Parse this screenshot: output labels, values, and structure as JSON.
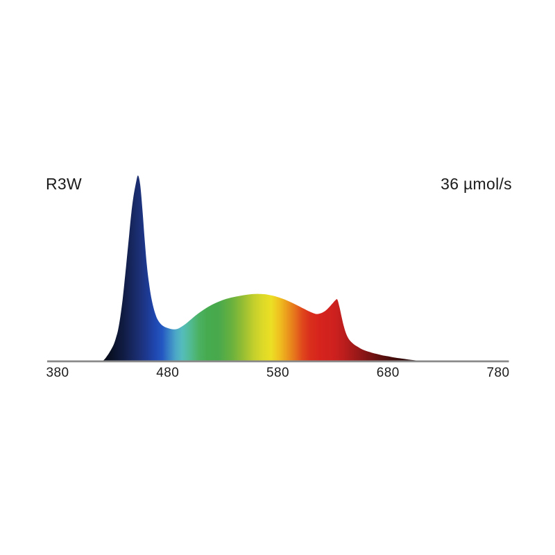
{
  "page": {
    "background_color": "#ffffff",
    "text_color": "#1b1b1b"
  },
  "chart_data": {
    "type": "area",
    "title": "",
    "annotations": {
      "series_name": "R3W",
      "photon_flux": "36 µmol/s"
    },
    "x_axis": {
      "min": 380,
      "max": 780,
      "unit": "nm",
      "ticks": [
        380,
        480,
        580,
        680,
        780
      ],
      "line_color": "#8a8a8a",
      "grid": false
    },
    "y_axis": {
      "min": 0,
      "max": 1,
      "visible": false
    },
    "series": [
      {
        "name": "R3W",
        "points": [
          [
            421,
            0
          ],
          [
            423,
            0.012
          ],
          [
            425,
            0.028
          ],
          [
            427,
            0.046
          ],
          [
            429,
            0.066
          ],
          [
            431,
            0.09
          ],
          [
            433,
            0.125
          ],
          [
            435,
            0.17
          ],
          [
            437,
            0.24
          ],
          [
            439,
            0.33
          ],
          [
            441,
            0.44
          ],
          [
            443,
            0.56
          ],
          [
            445,
            0.68
          ],
          [
            447,
            0.8
          ],
          [
            449,
            0.89
          ],
          [
            451,
            0.955
          ],
          [
            453,
            1.0
          ],
          [
            455,
            0.95
          ],
          [
            457,
            0.82
          ],
          [
            459,
            0.66
          ],
          [
            461,
            0.52
          ],
          [
            463,
            0.42
          ],
          [
            465,
            0.345
          ],
          [
            467,
            0.29
          ],
          [
            469,
            0.25
          ],
          [
            471,
            0.222
          ],
          [
            474,
            0.198
          ],
          [
            477,
            0.185
          ],
          [
            480,
            0.178
          ],
          [
            483,
            0.173
          ],
          [
            486,
            0.171
          ],
          [
            489,
            0.174
          ],
          [
            492,
            0.183
          ],
          [
            496,
            0.199
          ],
          [
            500,
            0.219
          ],
          [
            505,
            0.244
          ],
          [
            510,
            0.266
          ],
          [
            515,
            0.286
          ],
          [
            521,
            0.306
          ],
          [
            527,
            0.322
          ],
          [
            533,
            0.335
          ],
          [
            539,
            0.344
          ],
          [
            545,
            0.351
          ],
          [
            551,
            0.357
          ],
          [
            557,
            0.361
          ],
          [
            563,
            0.362
          ],
          [
            569,
            0.36
          ],
          [
            574,
            0.354
          ],
          [
            579,
            0.347
          ],
          [
            584,
            0.337
          ],
          [
            589,
            0.325
          ],
          [
            594,
            0.311
          ],
          [
            599,
            0.296
          ],
          [
            604,
            0.281
          ],
          [
            608,
            0.269
          ],
          [
            612,
            0.259
          ],
          [
            615,
            0.254
          ],
          [
            618,
            0.256
          ],
          [
            621,
            0.263
          ],
          [
            624,
            0.275
          ],
          [
            627,
            0.293
          ],
          [
            630,
            0.313
          ],
          [
            632,
            0.326
          ],
          [
            634,
            0.332
          ],
          [
            636,
            0.29
          ],
          [
            638,
            0.235
          ],
          [
            640,
            0.185
          ],
          [
            642,
            0.148
          ],
          [
            644,
            0.123
          ],
          [
            646,
            0.107
          ],
          [
            649,
            0.091
          ],
          [
            652,
            0.079
          ],
          [
            656,
            0.065
          ],
          [
            660,
            0.055
          ],
          [
            665,
            0.046
          ],
          [
            670,
            0.038
          ],
          [
            675,
            0.031
          ],
          [
            680,
            0.026
          ],
          [
            686,
            0.019
          ],
          [
            692,
            0.014
          ],
          [
            698,
            0.009
          ],
          [
            704,
            0.005
          ],
          [
            710,
            0.002
          ],
          [
            716,
            0.001
          ],
          [
            720,
            0
          ]
        ]
      }
    ],
    "wavelength_gradient": [
      [
        380,
        "#000000"
      ],
      [
        418,
        "#03050c"
      ],
      [
        430,
        "#0a1228"
      ],
      [
        440,
        "#111c44"
      ],
      [
        448,
        "#172760"
      ],
      [
        454,
        "#1b2f74"
      ],
      [
        461,
        "#1d3990"
      ],
      [
        468,
        "#1f46ae"
      ],
      [
        475,
        "#2457c2"
      ],
      [
        481,
        "#3780c6"
      ],
      [
        487,
        "#4ba6c8"
      ],
      [
        493,
        "#55bcbc"
      ],
      [
        500,
        "#52bb96"
      ],
      [
        508,
        "#4bb264"
      ],
      [
        516,
        "#46aa4e"
      ],
      [
        526,
        "#48a94c"
      ],
      [
        538,
        "#68b13e"
      ],
      [
        548,
        "#94bd34"
      ],
      [
        558,
        "#c2cf2c"
      ],
      [
        566,
        "#dcd928"
      ],
      [
        574,
        "#ecdf24"
      ],
      [
        581,
        "#efc220"
      ],
      [
        588,
        "#eb9d1d"
      ],
      [
        595,
        "#e6761c"
      ],
      [
        602,
        "#e0491c"
      ],
      [
        609,
        "#da2f1c"
      ],
      [
        618,
        "#d6241d"
      ],
      [
        630,
        "#cf211f"
      ],
      [
        640,
        "#bc1d1d"
      ],
      [
        650,
        "#a01919"
      ],
      [
        660,
        "#841515"
      ],
      [
        670,
        "#671110"
      ],
      [
        682,
        "#4a0d0c"
      ],
      [
        694,
        "#310908"
      ],
      [
        706,
        "#1d0505"
      ],
      [
        720,
        "#120303"
      ],
      [
        780,
        "#0a0202"
      ]
    ]
  }
}
